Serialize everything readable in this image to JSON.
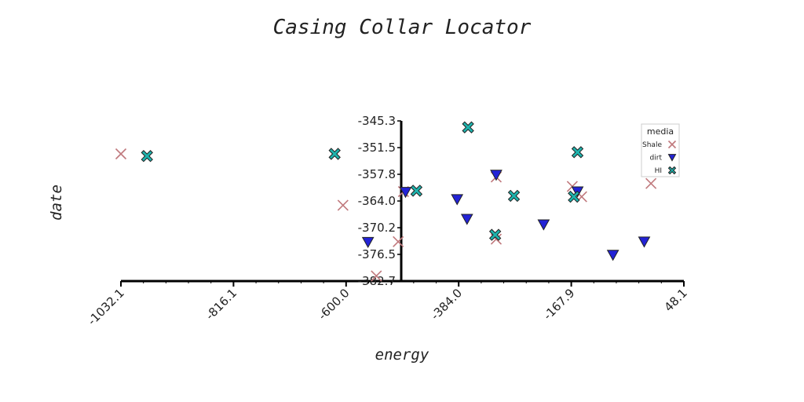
{
  "chart_data": {
    "type": "scatter",
    "title": "Casing Collar Locator",
    "xlabel": "energy",
    "ylabel": "date",
    "xlim": [
      -1032.1,
      48.1
    ],
    "ylim": [
      -382.7,
      -345.3
    ],
    "xticks": [
      "-1032.1",
      "-816.1",
      "-600.0",
      "-384.0",
      "-167.9",
      "48.1"
    ],
    "yticks": [
      "-345.3",
      "-351.5",
      "-357.8",
      "-364.0",
      "-370.2",
      "-376.5",
      "-382.7"
    ],
    "legend": {
      "title": "media",
      "position": "top-right"
    },
    "series": [
      {
        "name": "Shale",
        "marker": "x",
        "color": "#c0797d",
        "points": [
          [
            -1032.1,
            -353.0
          ],
          [
            -606.0,
            -365.0
          ],
          [
            -500.0,
            -373.5
          ],
          [
            -542.0,
            -381.5
          ],
          [
            -490.0,
            -361.8
          ],
          [
            -312.0,
            -372.9
          ],
          [
            -312.0,
            -358.4
          ],
          [
            -148.0,
            -363.0
          ],
          [
            -166.0,
            -360.6
          ],
          [
            -15.0,
            -359.9
          ]
        ]
      },
      {
        "name": "dirt",
        "marker": "triangle-down",
        "color": "#2323d6",
        "points": [
          [
            -558.0,
            -373.6
          ],
          [
            -486.0,
            -361.9
          ],
          [
            -387.0,
            -363.6
          ],
          [
            -368.0,
            -368.2
          ],
          [
            -312.0,
            -357.9
          ],
          [
            -221.0,
            -369.5
          ],
          [
            -156.0,
            -361.8
          ],
          [
            -88.0,
            -376.6
          ],
          [
            -28.0,
            -373.5
          ]
        ]
      },
      {
        "name": "HI",
        "marker": "x-filled",
        "color": "#1eb3ad",
        "points": [
          [
            -982.0,
            -353.5
          ],
          [
            -622.0,
            -353.0
          ],
          [
            -465.0,
            -361.6
          ],
          [
            -366.0,
            -346.8
          ],
          [
            -314.0,
            -371.9
          ],
          [
            -278.0,
            -362.8
          ],
          [
            -163.0,
            -363.0
          ],
          [
            -156.0,
            -352.6
          ]
        ]
      }
    ]
  }
}
